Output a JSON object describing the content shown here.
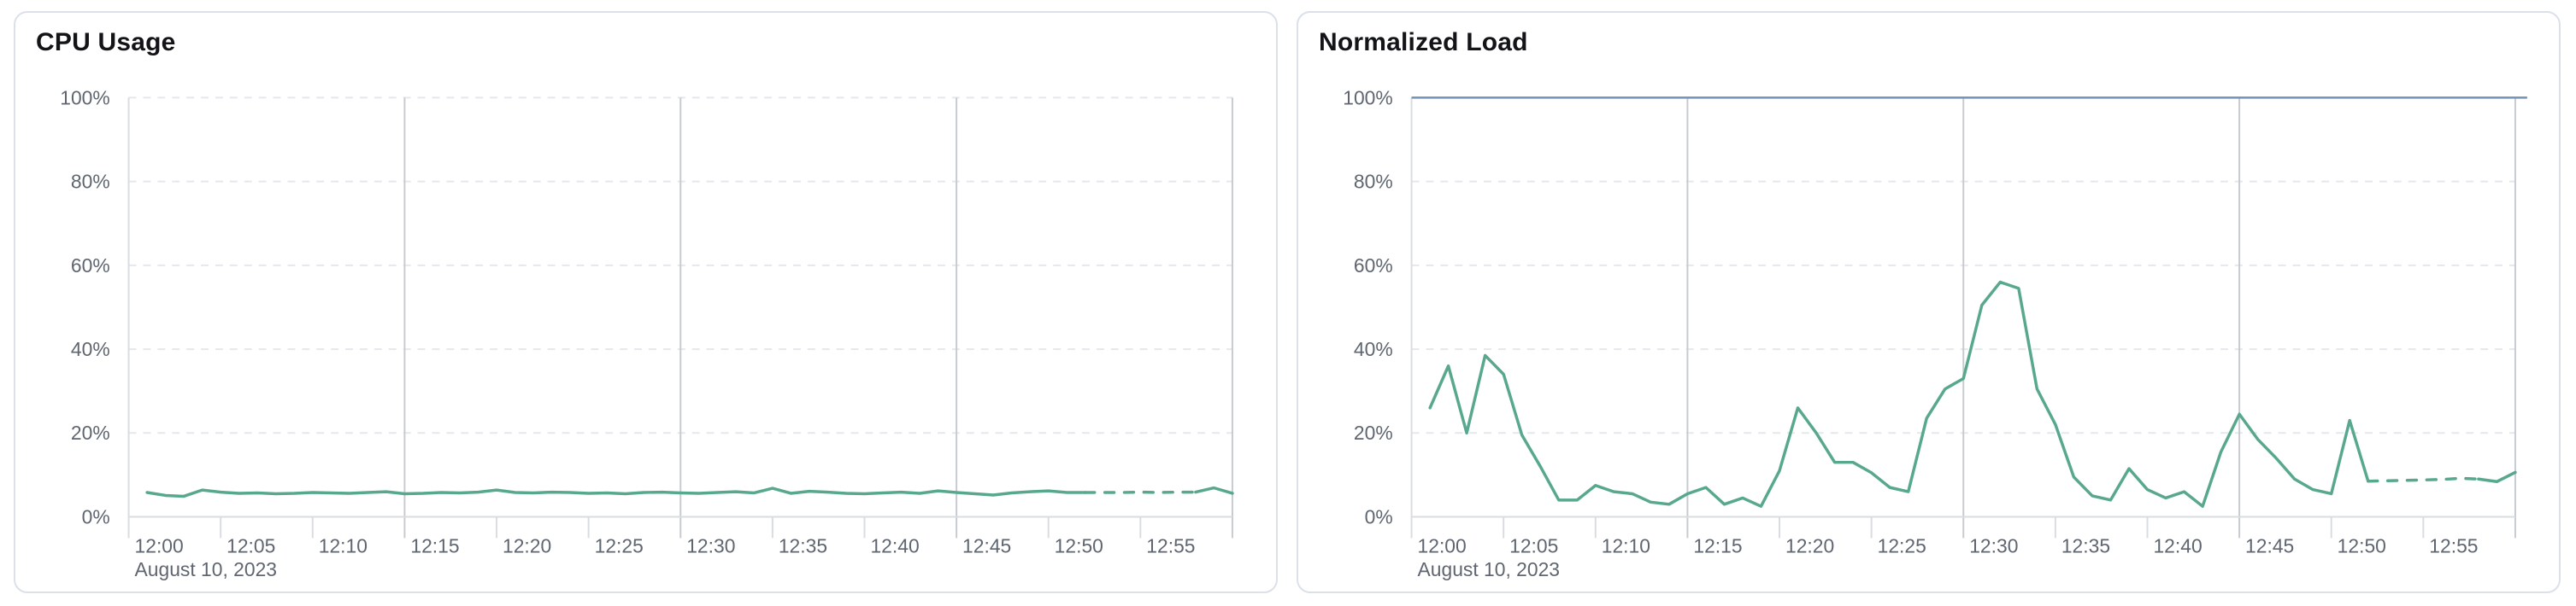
{
  "page": {
    "background": "#ffffff"
  },
  "colors": {
    "series_green": "#58a88e",
    "limit_blue": "#7092b8",
    "grid_dashed": "#e4e7ed",
    "grid_major_vertical": "#c7cad0",
    "axis_line": "#d9dce1",
    "axis_text": "#5f6670",
    "title_text": "#121418",
    "card_border": "#dbe0e9"
  },
  "chart_data": [
    {
      "type": "line",
      "title": "CPU Usage",
      "date_label": "August 10, 2023",
      "x_tick_labels": [
        "12:00",
        "12:05",
        "12:10",
        "12:15",
        "12:20",
        "12:25",
        "12:30",
        "12:35",
        "12:40",
        "12:45",
        "12:50",
        "12:55"
      ],
      "x_tick_minutes": [
        0,
        5,
        10,
        15,
        20,
        25,
        30,
        35,
        40,
        45,
        50,
        55
      ],
      "x_major_gridline_minutes": [
        15,
        30,
        45,
        60
      ],
      "x_range_minutes": [
        0,
        60
      ],
      "ylim": [
        0,
        100
      ],
      "y_tick_labels": [
        "0%",
        "20%",
        "40%",
        "60%",
        "80%",
        "100%"
      ],
      "y_tick_values": [
        0,
        20,
        40,
        60,
        80,
        100
      ],
      "grid": "horizontal dashed at every 20%, vertical solid every 15 min",
      "legend": "none",
      "series": [
        {
          "name": "cpu-usage",
          "color": "#58a88e",
          "style": "solid, dashed between minute 52 and 58, solid tail",
          "dashed_from_minute": 52,
          "dashed_to_minute": 58,
          "x_minutes": [
            1,
            2,
            3,
            4,
            5,
            6,
            7,
            8,
            9,
            10,
            11,
            12,
            13,
            14,
            15,
            16,
            17,
            18,
            19,
            20,
            21,
            22,
            23,
            24,
            25,
            26,
            27,
            28,
            29,
            30,
            31,
            32,
            33,
            34,
            35,
            36,
            37,
            38,
            39,
            40,
            41,
            42,
            43,
            44,
            45,
            46,
            47,
            48,
            49,
            50,
            51,
            52,
            53,
            54,
            55,
            56,
            57,
            58,
            59,
            60
          ],
          "values": [
            5.8,
            5.1,
            4.9,
            6.4,
            5.9,
            5.6,
            5.7,
            5.5,
            5.6,
            5.8,
            5.7,
            5.6,
            5.8,
            6.0,
            5.5,
            5.6,
            5.8,
            5.7,
            5.9,
            6.4,
            5.8,
            5.7,
            5.9,
            5.8,
            5.6,
            5.7,
            5.5,
            5.8,
            5.9,
            5.7,
            5.6,
            5.8,
            6.0,
            5.7,
            6.8,
            5.6,
            6.1,
            5.9,
            5.6,
            5.5,
            5.7,
            5.9,
            5.6,
            6.2,
            5.8,
            5.5,
            5.2,
            5.7,
            6.0,
            6.2,
            5.8,
            5.8,
            5.8,
            5.8,
            5.9,
            5.8,
            5.9,
            5.9,
            6.9,
            5.6
          ]
        }
      ]
    },
    {
      "type": "line",
      "title": "Normalized Load",
      "date_label": "August 10, 2023",
      "x_tick_labels": [
        "12:00",
        "12:05",
        "12:10",
        "12:15",
        "12:20",
        "12:25",
        "12:30",
        "12:35",
        "12:40",
        "12:45",
        "12:50",
        "12:55"
      ],
      "x_tick_minutes": [
        0,
        5,
        10,
        15,
        20,
        25,
        30,
        35,
        40,
        45,
        50,
        55
      ],
      "x_major_gridline_minutes": [
        15,
        30,
        45,
        60
      ],
      "x_range_minutes": [
        0,
        60
      ],
      "ylim": [
        0,
        100
      ],
      "y_tick_labels": [
        "0%",
        "20%",
        "40%",
        "60%",
        "80%",
        "100%"
      ],
      "y_tick_values": [
        0,
        20,
        40,
        60,
        80,
        100
      ],
      "grid": "horizontal dashed at every 20%, vertical solid every 15 min",
      "legend": "none",
      "series": [
        {
          "name": "limit-100-percent",
          "color": "#7092b8",
          "style": "constant horizontal line at 100%",
          "constant": 100
        },
        {
          "name": "normalized-load",
          "color": "#58a88e",
          "style": "solid, dashed between minute 52 and 58, solid tail",
          "dashed_from_minute": 52,
          "dashed_to_minute": 58,
          "x_minutes": [
            1,
            2,
            3,
            4,
            5,
            6,
            7,
            8,
            9,
            10,
            11,
            12,
            13,
            14,
            15,
            16,
            17,
            18,
            19,
            20,
            21,
            22,
            23,
            24,
            25,
            26,
            27,
            28,
            29,
            30,
            31,
            32,
            33,
            34,
            35,
            36,
            37,
            38,
            39,
            40,
            41,
            42,
            43,
            44,
            45,
            46,
            47,
            48,
            49,
            50,
            51,
            52,
            53,
            54,
            55,
            56,
            57,
            58,
            59,
            60
          ],
          "values": [
            26,
            36,
            20,
            38.5,
            34,
            19.5,
            12,
            4,
            4,
            7.5,
            6,
            5.5,
            3.5,
            3,
            5.5,
            7,
            3,
            4.5,
            2.5,
            11,
            26,
            20,
            13,
            13,
            10.5,
            7,
            6,
            23.5,
            30.5,
            33,
            50.5,
            56,
            54.5,
            30.5,
            22,
            9.5,
            5,
            4,
            11.5,
            6.5,
            4.5,
            6,
            2.5,
            15.5,
            24.5,
            18.5,
            14,
            9,
            6.5,
            5.5,
            23,
            8.5,
            8.6,
            8.7,
            8.8,
            8.9,
            9.2,
            9.0,
            8.4,
            10.6
          ]
        }
      ]
    }
  ]
}
